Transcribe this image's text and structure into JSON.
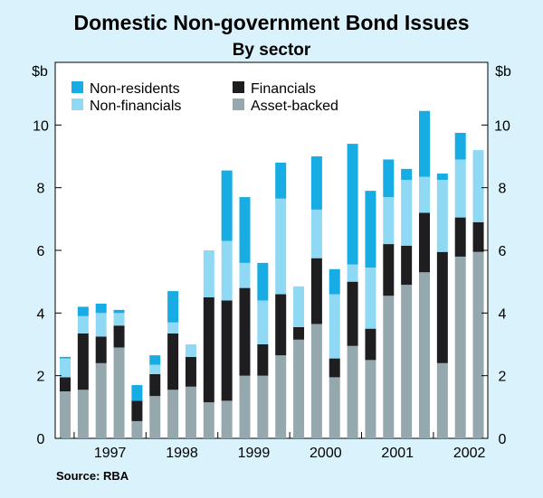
{
  "chart_data": {
    "type": "bar",
    "stacked": true,
    "title": "Domestic Non-government Bond Issues",
    "subtitle": "By sector",
    "ylabel_left": "$b",
    "ylabel_right": "$b",
    "ylim": [
      0,
      12
    ],
    "yticks": [
      0,
      2,
      4,
      6,
      8,
      10
    ],
    "year_labels": [
      "1997",
      "1998",
      "1999",
      "2000",
      "2001",
      "2002"
    ],
    "source": "Source: RBA",
    "legend": {
      "placement": "top-left",
      "entries": [
        "Non-residents",
        "Financials",
        "Non-financials",
        "Asset-backed"
      ]
    },
    "categories": [
      "1996Q4",
      "1997Q1",
      "1997Q2",
      "1997Q3",
      "1997Q4",
      "1998Q1",
      "1998Q2",
      "1998Q3",
      "1998Q4",
      "1999Q1",
      "1999Q2",
      "1999Q3",
      "1999Q4",
      "2000Q1",
      "2000Q2",
      "2000Q3",
      "2000Q4",
      "2001Q1",
      "2001Q2",
      "2001Q3",
      "2001Q4",
      "2002Q1",
      "2002Q2",
      "2002Q3"
    ],
    "series": [
      {
        "name": "Asset-backed",
        "color": "#95a8ae",
        "values": [
          1.5,
          1.55,
          2.4,
          2.9,
          0.55,
          1.35,
          1.55,
          1.65,
          1.15,
          1.2,
          2.0,
          2.0,
          2.65,
          3.15,
          3.65,
          1.95,
          2.95,
          2.5,
          4.55,
          4.9,
          5.3,
          2.4,
          5.8,
          5.95
        ]
      },
      {
        "name": "Financials",
        "color": "#1e1e20",
        "values": [
          0.45,
          1.8,
          0.85,
          0.7,
          0.65,
          0.7,
          1.8,
          0.95,
          3.35,
          3.2,
          2.8,
          1.0,
          1.95,
          0.4,
          2.1,
          0.6,
          2.05,
          1.0,
          1.65,
          1.25,
          1.9,
          3.55,
          1.25,
          0.95
        ]
      },
      {
        "name": "Non-financials",
        "color": "#8fd9f5",
        "values": [
          0.6,
          0.55,
          0.75,
          0.4,
          0.0,
          0.3,
          0.35,
          0.4,
          1.5,
          1.9,
          0.8,
          1.4,
          3.05,
          1.3,
          1.55,
          2.05,
          0.55,
          1.95,
          1.5,
          2.1,
          1.15,
          2.3,
          1.85,
          2.3
        ]
      },
      {
        "name": "Non-residents",
        "color": "#17ace3",
        "values": [
          0.05,
          0.3,
          0.3,
          0.1,
          0.5,
          0.3,
          1.0,
          0.0,
          0.0,
          2.25,
          2.1,
          1.2,
          1.15,
          0.0,
          1.7,
          0.8,
          3.85,
          2.45,
          1.2,
          0.35,
          2.1,
          0.2,
          0.85,
          0.0
        ]
      }
    ]
  }
}
